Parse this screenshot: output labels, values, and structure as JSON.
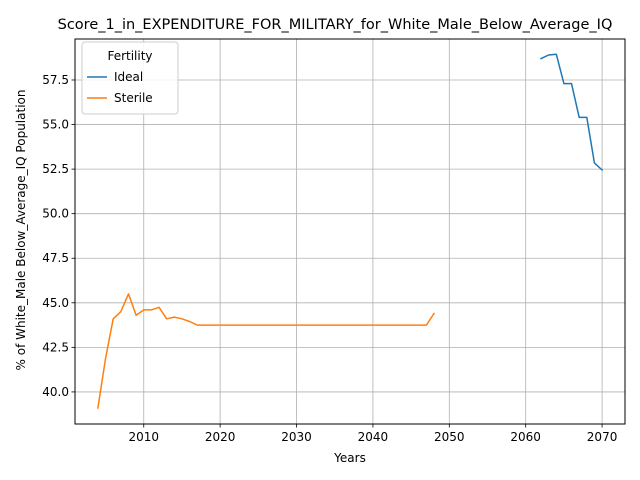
{
  "chart_data": {
    "type": "line",
    "title": "Score_1_in_EXPENDITURE_FOR_MILITARY_for_White_Male_Below_Average_IQ",
    "xlabel": "Years",
    "ylabel": "% of White_Male Below_Average_IQ Population",
    "xlim": [
      2001,
      2073
    ],
    "ylim": [
      38.2,
      59.8
    ],
    "xticks": [
      2010,
      2020,
      2030,
      2040,
      2050,
      2060,
      2070
    ],
    "xtick_labels": [
      "2010",
      "2020",
      "2030",
      "2040",
      "2050",
      "2060",
      "2070"
    ],
    "yticks": [
      40.0,
      42.5,
      45.0,
      47.5,
      50.0,
      52.5,
      55.0,
      57.5
    ],
    "ytick_labels": [
      "40.0",
      "42.5",
      "45.0",
      "47.5",
      "50.0",
      "52.5",
      "55.0",
      "57.5"
    ],
    "grid": true,
    "legend": {
      "title": "Fertility",
      "placement": "top-left"
    },
    "series": [
      {
        "name": "Ideal",
        "color": "#1f77b4",
        "x": [
          2062,
          2063,
          2064,
          2065,
          2066,
          2067,
          2068,
          2069,
          2070
        ],
        "y": [
          58.7,
          58.9,
          58.95,
          57.3,
          57.3,
          55.4,
          55.4,
          52.85,
          52.45
        ]
      },
      {
        "name": "Sterile",
        "color": "#ff7f0e",
        "x": [
          2004,
          2005,
          2006,
          2007,
          2008,
          2009,
          2010,
          2011,
          2012,
          2013,
          2014,
          2015,
          2016,
          2017,
          2018,
          2020,
          2025,
          2030,
          2035,
          2040,
          2045,
          2047,
          2048
        ],
        "y": [
          39.1,
          41.9,
          44.1,
          44.5,
          45.5,
          44.3,
          44.6,
          44.6,
          44.75,
          44.1,
          44.2,
          44.1,
          43.95,
          43.75,
          43.75,
          43.75,
          43.75,
          43.75,
          43.75,
          43.75,
          43.75,
          43.75,
          44.4
        ]
      }
    ]
  }
}
